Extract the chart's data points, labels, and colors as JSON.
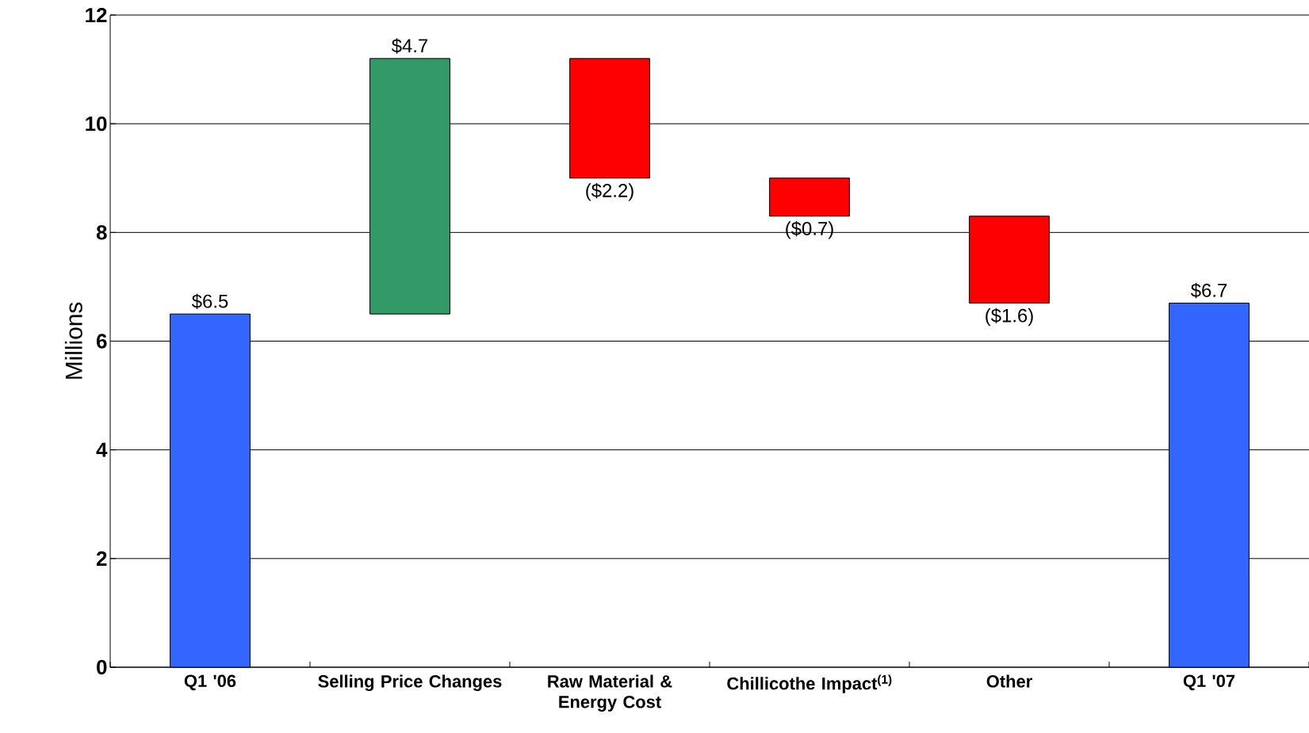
{
  "chart_data": {
    "type": "bar",
    "ylabel": "Millions",
    "categories": [
      "Q1 '06",
      "Selling Price Changes",
      "Raw Material & Energy Cost",
      "Chillicothe Impact$^{(1)}$",
      "Other",
      "Q1 '07"
    ],
    "values": [
      6.5,
      4.7,
      -2.2,
      -0.7,
      -1.6,
      6.7
    ],
    "base": [
      0,
      6.5,
      11.2,
      9.0,
      8.3,
      0
    ],
    "colors": [
      "#3366ff",
      "#339966",
      "#ff0000",
      "#ff0000",
      "#ff0000",
      "#3366ff"
    ],
    "value_labels": [
      "$6.5",
      "$4.7",
      "($2.2)",
      "($0.7)",
      "($1.6)",
      "$6.7"
    ],
    "ylim": [
      0,
      12
    ],
    "yticks": [
      0,
      2,
      4,
      6,
      8,
      10,
      12
    ],
    "grid": "y"
  }
}
